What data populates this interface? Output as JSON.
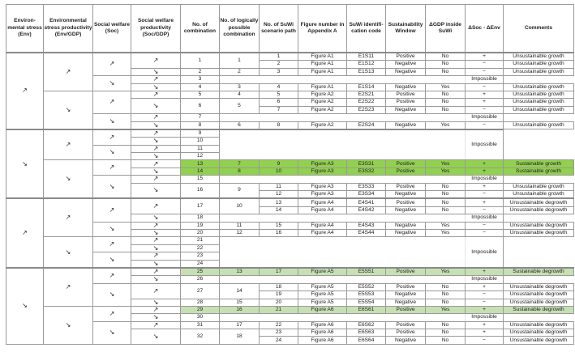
{
  "colors": {
    "sustainable_growth": "#92d050",
    "sustainable_degrowth": "#c6e0b4",
    "border": "#9a9a9a"
  },
  "headers": [
    "Environ-mental stress (Env)",
    "Environmental stress productivity (Env/GDP)",
    "Social welfare (Soc)",
    "Social welfare productivity (Soc/GDP)",
    "No. of combination",
    "No. of logically possible combination",
    "No. of SuWi scenario path",
    "Figure number in Appendix A",
    "SuWi identifi-cation code",
    "Sustainability Window",
    "ΔGDP inside SuWi",
    "ΔSoc - ΔEnv",
    "Comments"
  ],
  "impossible_label": "Impossible",
  "env_groups": [
    {
      "env": "↗",
      "envgdp": [
        {
          "v": "↗",
          "soc": [
            {
              "v": "↗",
              "socgdp": [
                {
                  "v": "↗",
                  "comb": "1",
                  "logical": "1",
                  "paths": [
                    {
                      "path": "1",
                      "fig": "Figure A1",
                      "code": "E1S11",
                      "window": "Positive",
                      "gdp": "No",
                      "delta": "+",
                      "comment": "Unsustainable growth"
                    },
                    {
                      "path": "2",
                      "fig": "Figure A1",
                      "code": "E1S12",
                      "window": "Negative",
                      "gdp": "No",
                      "delta": "−",
                      "comment": "Unsustainable growth"
                    }
                  ]
                },
                {
                  "v": "↘",
                  "comb": "2",
                  "logical": "2",
                  "paths": [
                    {
                      "path": "3",
                      "fig": "Figure A1",
                      "code": "E1S13",
                      "window": "Negative",
                      "gdp": "No",
                      "delta": "−",
                      "comment": "Unsustainable growth"
                    }
                  ]
                }
              ]
            },
            {
              "v": "↘",
              "socgdp": [
                {
                  "v": "↗",
                  "comb": "3",
                  "impossible": true
                },
                {
                  "v": "↘",
                  "comb": "4",
                  "logical": "3",
                  "paths": [
                    {
                      "path": "4",
                      "fig": "Figure A1",
                      "code": "E1S14",
                      "window": "Negative",
                      "gdp": "Yes",
                      "delta": "−",
                      "comment": "Unsustainable growth"
                    }
                  ]
                }
              ]
            }
          ]
        },
        {
          "v": "↘",
          "soc": [
            {
              "v": "↗",
              "socgdp": [
                {
                  "v": "↗",
                  "comb": "5",
                  "logical": "4",
                  "paths": [
                    {
                      "path": "5",
                      "fig": "Figure A2",
                      "code": "E2S21",
                      "window": "Positive",
                      "gdp": "No",
                      "delta": "+",
                      "comment": "Unsustainable growth"
                    }
                  ]
                },
                {
                  "v": "↘",
                  "comb": "6",
                  "logical": "5",
                  "paths": [
                    {
                      "path": "6",
                      "fig": "Figure A2",
                      "code": "E2S22",
                      "window": "Positive",
                      "gdp": "No",
                      "delta": "+",
                      "comment": "Unsustainable growth"
                    },
                    {
                      "path": "7",
                      "fig": "Figure A2",
                      "code": "E2S23",
                      "window": "Negative",
                      "gdp": "No",
                      "delta": "−",
                      "comment": "Unsustainable growth"
                    }
                  ]
                }
              ]
            },
            {
              "v": "↘",
              "socgdp": [
                {
                  "v": "↗",
                  "comb": "7",
                  "impossible": true
                },
                {
                  "v": "↘",
                  "comb": "8",
                  "logical": "6",
                  "paths": [
                    {
                      "path": "8",
                      "fig": "Figure A2",
                      "code": "E2S24",
                      "window": "Negative",
                      "gdp": "Yes",
                      "delta": "−",
                      "comment": "Unsustainable growth"
                    }
                  ]
                }
              ]
            }
          ]
        }
      ]
    },
    {
      "env": "↘",
      "envgdp": [
        {
          "v": "↗",
          "soc": [
            {
              "v": "↗",
              "socgdp": [
                {
                  "v": "↗",
                  "comb": "9",
                  "impossible": true
                },
                {
                  "v": "↘",
                  "comb": "10",
                  "impossible": true
                }
              ]
            },
            {
              "v": "↘",
              "socgdp": [
                {
                  "v": "↗",
                  "comb": "11",
                  "impossible": true
                },
                {
                  "v": "↘",
                  "comb": "12",
                  "impossible": true
                }
              ]
            }
          ]
        },
        {
          "v": "↘",
          "soc": [
            {
              "v": "↗",
              "socgdp": [
                {
                  "v": "↗",
                  "comb": "13",
                  "logical": "7",
                  "highlight": "sustainable_growth",
                  "paths": [
                    {
                      "path": "9",
                      "fig": "Figure A3",
                      "code": "E3S31",
                      "window": "Positive",
                      "gdp": "Yes",
                      "delta": "+",
                      "comment": "Sustainable growth"
                    }
                  ]
                },
                {
                  "v": "↘",
                  "comb": "14",
                  "logical": "8",
                  "highlight": "sustainable_growth",
                  "paths": [
                    {
                      "path": "10",
                      "fig": "Figure A3",
                      "code": "E3S32",
                      "window": "Positive",
                      "gdp": "Yes",
                      "delta": "+",
                      "comment": "Sustainable growth"
                    }
                  ]
                }
              ]
            },
            {
              "v": "↘",
              "socgdp": [
                {
                  "v": "↗",
                  "comb": "15",
                  "impossible": true
                },
                {
                  "v": "↘",
                  "comb": "16",
                  "logical": "9",
                  "paths": [
                    {
                      "path": "11",
                      "fig": "Figure A3",
                      "code": "E3S33",
                      "window": "Positive",
                      "gdp": "No",
                      "delta": "+",
                      "comment": "Unsustainable growth"
                    },
                    {
                      "path": "12",
                      "fig": "Figure A3",
                      "code": "E3S34",
                      "window": "Negative",
                      "gdp": "No",
                      "delta": "−",
                      "comment": "Unsustainable growth"
                    }
                  ]
                }
              ]
            }
          ]
        }
      ]
    },
    {
      "env": "↗",
      "envgdp": [
        {
          "v": "↗",
          "soc": [
            {
              "v": "↗",
              "socgdp": [
                {
                  "v": "↗",
                  "comb": "17",
                  "logical": "10",
                  "paths": [
                    {
                      "path": "13",
                      "fig": "Figure A4",
                      "code": "E4S41",
                      "window": "Positive",
                      "gdp": "No",
                      "delta": "+",
                      "comment": "Unsustainable degrowth"
                    },
                    {
                      "path": "14",
                      "fig": "Figure A4",
                      "code": "E4S42",
                      "window": "Negative",
                      "gdp": "No",
                      "delta": "−",
                      "comment": "Unsustainable degrowth"
                    }
                  ]
                },
                {
                  "v": "↘",
                  "comb": "18",
                  "impossible": true
                }
              ]
            },
            {
              "v": "↘",
              "socgdp": [
                {
                  "v": "↗",
                  "comb": "19",
                  "logical": "11",
                  "paths": [
                    {
                      "path": "15",
                      "fig": "Figure A4",
                      "code": "E4S43",
                      "window": "Negative",
                      "gdp": "Yes",
                      "delta": "−",
                      "comment": "Unsustainable degrowth"
                    }
                  ]
                },
                {
                  "v": "↘",
                  "comb": "20",
                  "logical": "12",
                  "paths": [
                    {
                      "path": "16",
                      "fig": "Figure A4",
                      "code": "E4S44",
                      "window": "Negative",
                      "gdp": "Yes",
                      "delta": "−",
                      "comment": "Unsustainable degrowth"
                    }
                  ]
                }
              ]
            }
          ]
        },
        {
          "v": "↘",
          "soc": [
            {
              "v": "↗",
              "socgdp": [
                {
                  "v": "↗",
                  "comb": "21",
                  "impossible": true
                },
                {
                  "v": "↘",
                  "comb": "22",
                  "impossible": true
                }
              ]
            },
            {
              "v": "↘",
              "socgdp": [
                {
                  "v": "↗",
                  "comb": "23",
                  "impossible": true
                },
                {
                  "v": "↘",
                  "comb": "24",
                  "impossible": true
                }
              ]
            }
          ]
        }
      ]
    },
    {
      "env": "↘",
      "envgdp": [
        {
          "v": "↗",
          "soc": [
            {
              "v": "↗",
              "socgdp": [
                {
                  "v": "↗",
                  "comb": "25",
                  "logical": "13",
                  "highlight": "sustainable_degrowth",
                  "paths": [
                    {
                      "path": "17",
                      "fig": "Figure A5",
                      "code": "E5S51",
                      "window": "Positive",
                      "gdp": "Yes",
                      "delta": "+",
                      "comment": "Sustainable degrowth"
                    }
                  ]
                },
                {
                  "v": "↘",
                  "comb": "26",
                  "impossible": true
                }
              ]
            },
            {
              "v": "↘",
              "socgdp": [
                {
                  "v": "↗",
                  "comb": "27",
                  "logical": "14",
                  "paths": [
                    {
                      "path": "18",
                      "fig": "Figure A5",
                      "code": "E5S52",
                      "window": "Positive",
                      "gdp": "No",
                      "delta": "+",
                      "comment": "Unsustainable degrowth"
                    },
                    {
                      "path": "19",
                      "fig": "Figure A5",
                      "code": "E5S53",
                      "window": "Negative",
                      "gdp": "No",
                      "delta": "−",
                      "comment": "Unsustainable degrowth"
                    }
                  ]
                },
                {
                  "v": "↘",
                  "comb": "28",
                  "logical": "15",
                  "paths": [
                    {
                      "path": "20",
                      "fig": "Figure A5",
                      "code": "E5S54",
                      "window": "Negative",
                      "gdp": "No",
                      "delta": "−",
                      "comment": "Unsustainable degrowth"
                    }
                  ]
                }
              ]
            }
          ]
        },
        {
          "v": "↘",
          "soc": [
            {
              "v": "↗",
              "socgdp": [
                {
                  "v": "↗",
                  "comb": "29",
                  "logical": "16",
                  "highlight": "sustainable_degrowth",
                  "paths": [
                    {
                      "path": "21",
                      "fig": "Figure A6",
                      "code": "E6S61",
                      "window": "Positive",
                      "gdp": "Yes",
                      "delta": "+",
                      "comment": "Sustainable degrowth"
                    }
                  ]
                },
                {
                  "v": "↘",
                  "comb": "30",
                  "impossible": true
                }
              ]
            },
            {
              "v": "↘",
              "socgdp": [
                {
                  "v": "↗",
                  "comb": "31",
                  "logical": "17",
                  "paths": [
                    {
                      "path": "22",
                      "fig": "Figure A6",
                      "code": "E6S62",
                      "window": "Positive",
                      "gdp": "No",
                      "delta": "+",
                      "comment": "Unsustainable degrowth"
                    }
                  ]
                },
                {
                  "v": "↘",
                  "comb": "32",
                  "logical": "18",
                  "paths": [
                    {
                      "path": "23",
                      "fig": "Figure A6",
                      "code": "E6S63",
                      "window": "Positive",
                      "gdp": "No",
                      "delta": "+",
                      "comment": "Unsustainable degrowth"
                    },
                    {
                      "path": "24",
                      "fig": "Figure A6",
                      "code": "E6S64",
                      "window": "Negative",
                      "gdp": "No",
                      "delta": "−",
                      "comment": "Unsustainable degrowth"
                    }
                  ]
                }
              ]
            }
          ]
        }
      ]
    }
  ]
}
